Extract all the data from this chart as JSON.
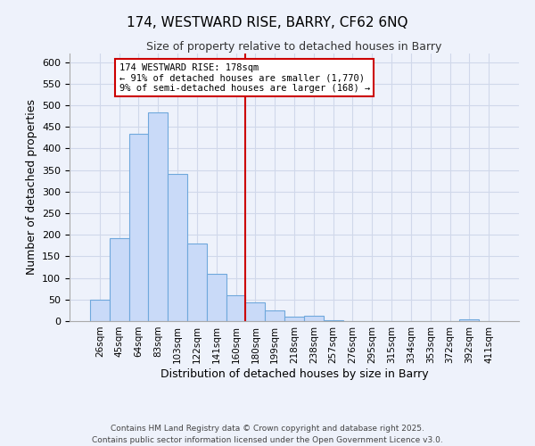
{
  "title": "174, WESTWARD RISE, BARRY, CF62 6NQ",
  "subtitle": "Size of property relative to detached houses in Barry",
  "xlabel": "Distribution of detached houses by size in Barry",
  "ylabel": "Number of detached properties",
  "bar_labels": [
    "26sqm",
    "45sqm",
    "64sqm",
    "83sqm",
    "103sqm",
    "122sqm",
    "141sqm",
    "160sqm",
    "180sqm",
    "199sqm",
    "218sqm",
    "238sqm",
    "257sqm",
    "276sqm",
    "295sqm",
    "315sqm",
    "334sqm",
    "353sqm",
    "372sqm",
    "392sqm",
    "411sqm"
  ],
  "bar_values": [
    50,
    192,
    433,
    484,
    340,
    179,
    110,
    60,
    44,
    24,
    10,
    12,
    3,
    0,
    0,
    0,
    0,
    0,
    0,
    5,
    0
  ],
  "bar_color": "#c9daf8",
  "bar_edge_color": "#6fa8dc",
  "vline_idx": 8,
  "vline_color": "#cc0000",
  "annotation_title": "174 WESTWARD RISE: 178sqm",
  "annotation_line1": "← 91% of detached houses are smaller (1,770)",
  "annotation_line2": "9% of semi-detached houses are larger (168) →",
  "annotation_box_edge": "#cc0000",
  "ylim": [
    0,
    620
  ],
  "yticks": [
    0,
    50,
    100,
    150,
    200,
    250,
    300,
    350,
    400,
    450,
    500,
    550,
    600
  ],
  "footer1": "Contains HM Land Registry data © Crown copyright and database right 2025.",
  "footer2": "Contains public sector information licensed under the Open Government Licence v3.0.",
  "bg_color": "#eef2fb",
  "grid_color": "#d0d8ea"
}
